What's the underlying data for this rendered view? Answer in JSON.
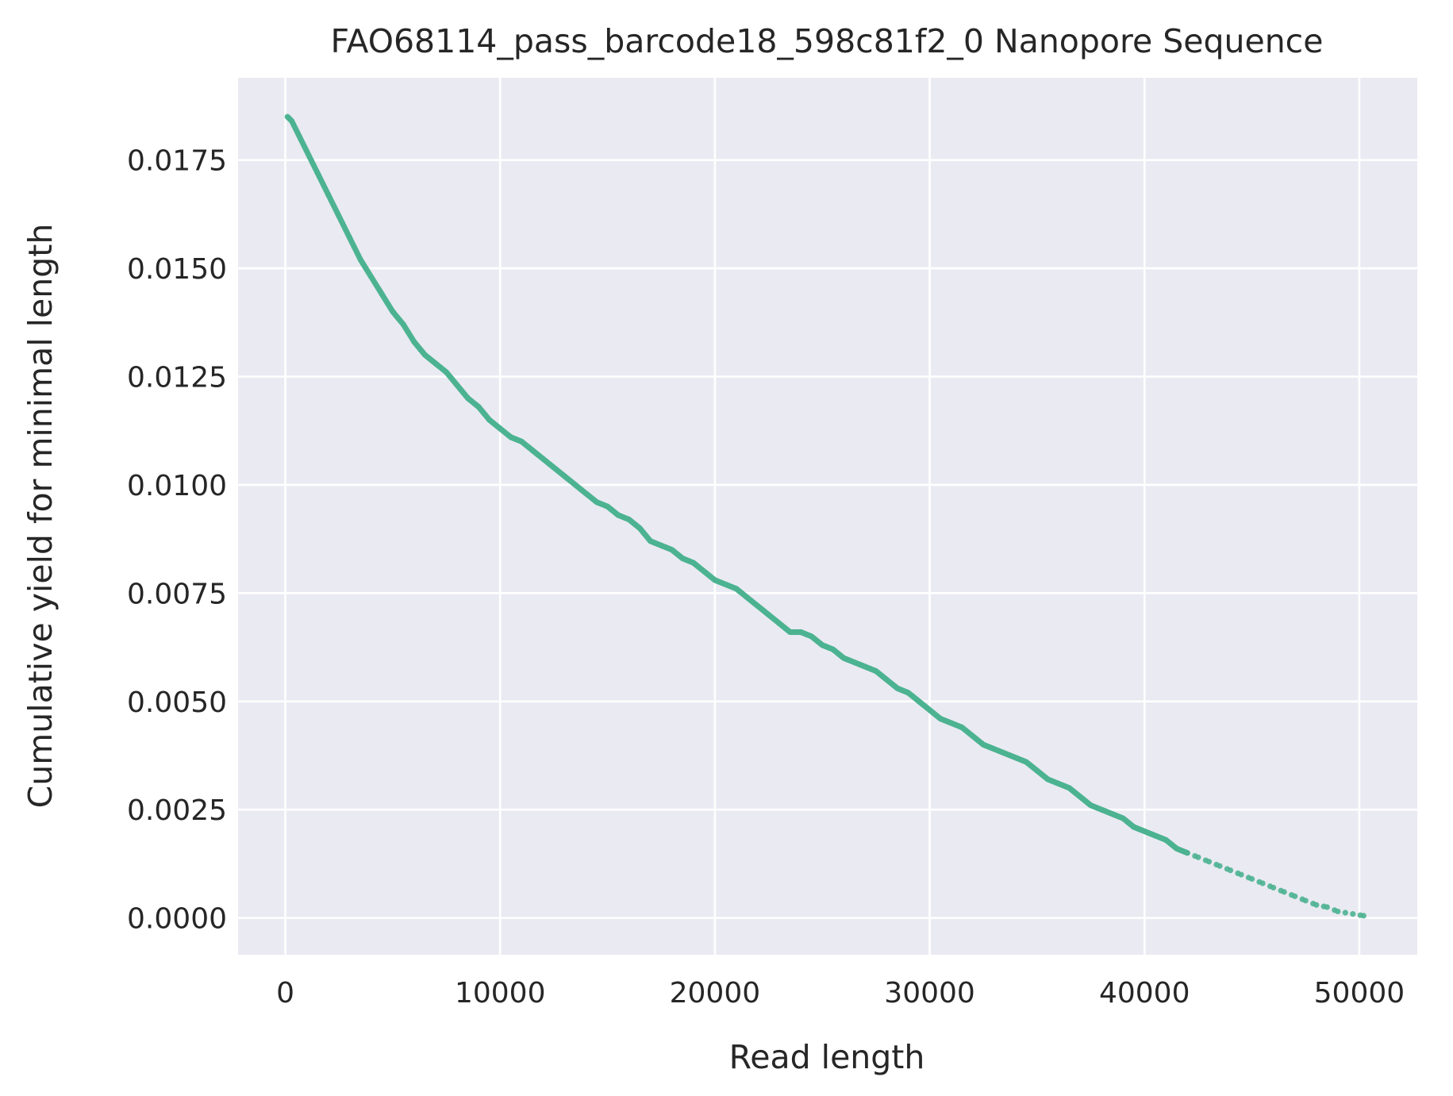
{
  "chart_data": {
    "type": "scatter",
    "title": "FAO68114_pass_barcode18_598c81f2_0 Nanopore Sequence",
    "xlabel": "Read length",
    "ylabel": "Cumulative yield for minimal length",
    "xlim": [
      -2200,
      52700
    ],
    "ylim": [
      -0.00085,
      0.0194
    ],
    "xticks": [
      0,
      10000,
      20000,
      30000,
      40000,
      50000
    ],
    "xtick_labels": [
      "0",
      "10000",
      "20000",
      "30000",
      "40000",
      "50000"
    ],
    "yticks": [
      0.0,
      0.0025,
      0.005,
      0.0075,
      0.01,
      0.0125,
      0.015,
      0.0175
    ],
    "ytick_labels": [
      "0.0000",
      "0.0025",
      "0.0050",
      "0.0075",
      "0.0100",
      "0.0125",
      "0.0150",
      "0.0175"
    ],
    "grid": true,
    "background": "#eaeaf2",
    "marker_color": "#4cb391",
    "series": [
      {
        "x": [
          100,
          300,
          500,
          1000,
          1500,
          2000,
          2500,
          3000,
          3500,
          4000,
          4500,
          5000,
          5500,
          6000,
          6500,
          7000,
          7500,
          8000,
          8500,
          9000,
          9500,
          10000,
          10500,
          11000,
          11500,
          12000,
          12500,
          13000,
          13500,
          14000,
          14500,
          15000,
          15500,
          16000,
          16500,
          17000,
          17500,
          18000,
          18500,
          19000,
          19500,
          20000,
          20500,
          21000,
          21500,
          22000,
          22500,
          23000,
          23500,
          24000,
          24500,
          25000,
          25500,
          26000,
          26500,
          27000,
          27500,
          28000,
          28500,
          29000,
          29500,
          30000,
          30500,
          31000,
          31500,
          32000,
          32500,
          33000,
          33500,
          34000,
          34500,
          35000,
          35500,
          36000,
          36500,
          37000,
          37500,
          38000,
          38500,
          39000,
          39500,
          40000,
          40500,
          41000,
          41500,
          42000,
          42500,
          43000,
          43500,
          44000,
          44500,
          45000,
          45500,
          46000,
          46500,
          47000,
          47500,
          48000,
          48500,
          49000,
          50200
        ],
        "y": [
          0.0185,
          0.0184,
          0.0182,
          0.0177,
          0.0172,
          0.0167,
          0.0162,
          0.0157,
          0.0152,
          0.0148,
          0.0144,
          0.014,
          0.0137,
          0.0133,
          0.013,
          0.0128,
          0.0126,
          0.0123,
          0.012,
          0.0118,
          0.0115,
          0.0113,
          0.0111,
          0.011,
          0.0108,
          0.0106,
          0.0104,
          0.0102,
          0.01,
          0.0098,
          0.0096,
          0.0095,
          0.0093,
          0.0092,
          0.009,
          0.0087,
          0.0086,
          0.0085,
          0.0083,
          0.0082,
          0.008,
          0.0078,
          0.0077,
          0.0076,
          0.0074,
          0.0072,
          0.007,
          0.0068,
          0.0066,
          0.0066,
          0.0065,
          0.0063,
          0.0062,
          0.006,
          0.0059,
          0.0058,
          0.0057,
          0.0055,
          0.0053,
          0.0052,
          0.005,
          0.0048,
          0.0046,
          0.0045,
          0.0044,
          0.0042,
          0.004,
          0.0039,
          0.0038,
          0.0037,
          0.0036,
          0.0034,
          0.0032,
          0.0031,
          0.003,
          0.0028,
          0.0026,
          0.0025,
          0.0024,
          0.0023,
          0.0021,
          0.002,
          0.0019,
          0.0018,
          0.0016,
          0.0015,
          0.0014,
          0.0013,
          0.0012,
          0.0011,
          0.001,
          0.0009,
          0.0008,
          0.0007,
          0.0006,
          0.0005,
          0.0004,
          0.0003,
          0.00025,
          0.00015,
          5e-05
        ]
      }
    ]
  }
}
